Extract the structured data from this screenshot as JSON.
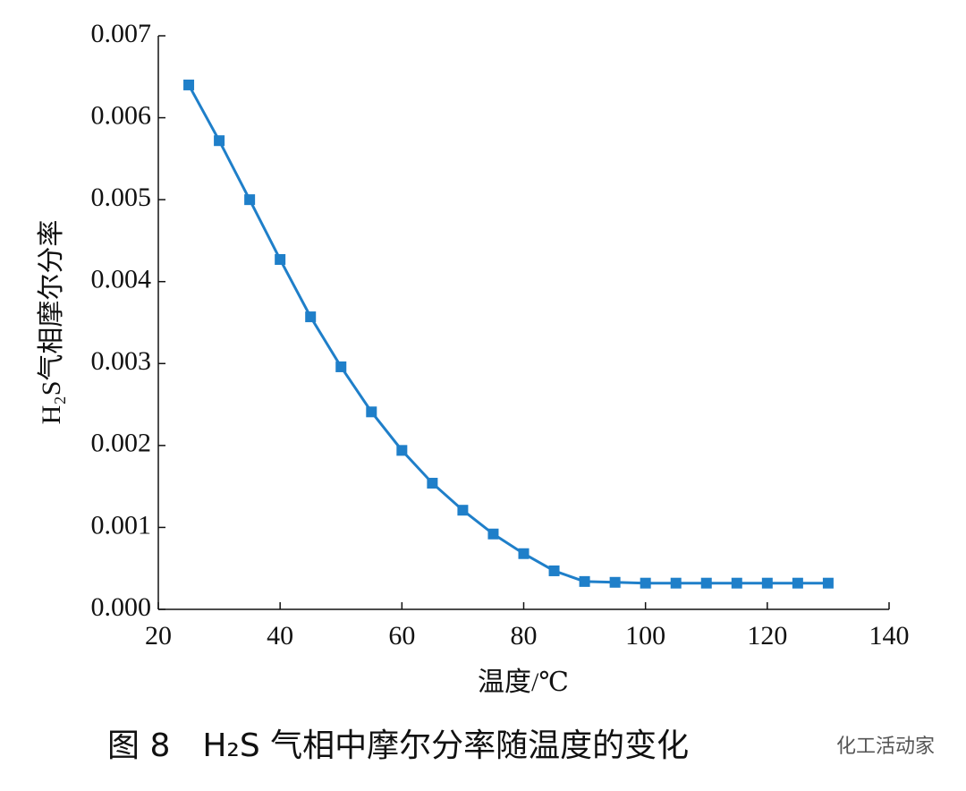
{
  "chart_data": {
    "type": "line",
    "y_label": "H₂S气相摩尔分率",
    "x_label": "温度/℃",
    "caption": "图 8　H₂S 气相中摩尔分率随温度的变化",
    "watermark": "化工活动家",
    "x": [
      25,
      30,
      35,
      40,
      45,
      50,
      55,
      60,
      65,
      70,
      75,
      80,
      85,
      90,
      95,
      100,
      105,
      110,
      115,
      120,
      125,
      130
    ],
    "series": [
      {
        "color": "#1f7fc9",
        "values": [
          0.0064,
          0.00572,
          0.005,
          0.00427,
          0.00357,
          0.00296,
          0.00241,
          0.00194,
          0.00154,
          0.00121,
          0.00092,
          0.00068,
          0.00047,
          0.00034,
          0.00033,
          0.00032,
          0.00032,
          0.00032,
          0.00032,
          0.00032,
          0.00032,
          0.00032
        ]
      }
    ],
    "xlim": [
      20,
      140
    ],
    "xticks": [
      20,
      40,
      60,
      80,
      100,
      120,
      140
    ],
    "ylim": [
      0,
      0.007
    ],
    "yticks": [
      {
        "value": 0,
        "label": "0.000"
      },
      0.001,
      0.002,
      0.003,
      0.004,
      0.005,
      0.006,
      0.007
    ]
  }
}
